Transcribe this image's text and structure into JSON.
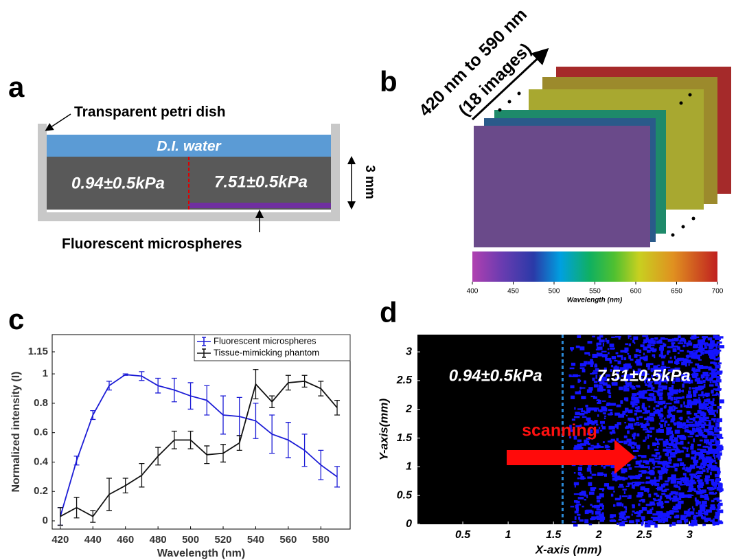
{
  "panel_a": {
    "label": "a",
    "dish": "Transparent petri dish",
    "water": "D.I. water",
    "soft": "0.94±0.5kPa",
    "stiff": "7.51±0.5kPa",
    "thickness": "3 mm",
    "particles": "Fluorescent microspheres"
  },
  "panel_b": {
    "label": "b",
    "range": "420 nm to 590 nm",
    "count": "(18 images)",
    "colorbar": {
      "title": "Wavelength (nm)",
      "lim": [
        400,
        700
      ],
      "ticks": [
        400,
        450,
        500,
        550,
        600,
        650,
        700
      ]
    }
  },
  "chart_data": [
    {
      "type": "line",
      "label": "c",
      "xlabel": "Wavelength (nm)",
      "ylabel": "Normalized intensity (I)",
      "x": [
        420,
        430,
        440,
        450,
        460,
        470,
        480,
        490,
        500,
        510,
        520,
        530,
        540,
        550,
        560,
        570,
        580,
        590
      ],
      "series": [
        {
          "name": "Fluorescent microspheres",
          "color": "#1c1cd6",
          "values": [
            0.03,
            0.41,
            0.72,
            0.92,
            0.995,
            0.985,
            0.92,
            0.89,
            0.85,
            0.82,
            0.72,
            0.71,
            0.68,
            0.59,
            0.55,
            0.48,
            0.38,
            0.3
          ],
          "errors": [
            0.06,
            0.03,
            0.03,
            0.03,
            0.005,
            0.03,
            0.05,
            0.08,
            0.09,
            0.1,
            0.13,
            0.13,
            0.12,
            0.13,
            0.12,
            0.11,
            0.1,
            0.07
          ]
        },
        {
          "name": "Tissue-mimicking phantom",
          "color": "#111111",
          "values": [
            0.03,
            0.09,
            0.03,
            0.18,
            0.24,
            0.31,
            0.44,
            0.55,
            0.55,
            0.45,
            0.46,
            0.53,
            0.93,
            0.81,
            0.94,
            0.95,
            0.9,
            0.77
          ],
          "errors": [
            0.06,
            0.07,
            0.04,
            0.11,
            0.05,
            0.08,
            0.06,
            0.06,
            0.06,
            0.06,
            0.06,
            0.05,
            0.1,
            0.04,
            0.05,
            0.04,
            0.05,
            0.05
          ]
        }
      ],
      "xlim": [
        415,
        598
      ],
      "xticks": [
        420,
        440,
        460,
        480,
        500,
        520,
        540,
        560,
        580
      ],
      "ylim": [
        -0.056,
        1.267
      ],
      "yticks": [
        0,
        0.2,
        0.4,
        0.6,
        0.8,
        1,
        1.15
      ],
      "legend": "upper right"
    },
    {
      "type": "image",
      "label": "d",
      "xlabel": "X-axis (mm)",
      "ylabel": "Y-axis(mm)",
      "xlim": [
        0,
        3.33
      ],
      "xticks": [
        0.5,
        1,
        1.5,
        2,
        2.5,
        3
      ],
      "ylim": [
        0,
        3.3
      ],
      "yticks": [
        0,
        0.5,
        1,
        1.5,
        2,
        2.5,
        3
      ],
      "boundary_x": 1.6,
      "left_text": "0.94±0.5kPa",
      "right_text": "7.51±0.5kPa",
      "arrow_text": "scanning",
      "background": "#000000",
      "color": "#1414ff"
    }
  ]
}
